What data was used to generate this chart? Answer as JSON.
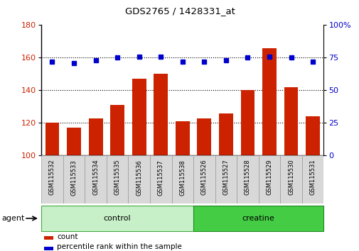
{
  "title": "GDS2765 / 1428331_at",
  "samples": [
    "GSM115532",
    "GSM115533",
    "GSM115534",
    "GSM115535",
    "GSM115536",
    "GSM115537",
    "GSM115538",
    "GSM115526",
    "GSM115527",
    "GSM115528",
    "GSM115529",
    "GSM115530",
    "GSM115531"
  ],
  "counts": [
    120,
    117,
    123,
    131,
    147,
    150,
    121,
    123,
    126,
    140,
    166,
    142,
    124
  ],
  "percentiles": [
    72,
    71,
    73,
    75,
    76,
    76,
    72,
    72,
    73,
    75,
    76,
    75,
    72
  ],
  "groups": [
    {
      "label": "control",
      "start": 0,
      "end": 7,
      "color": "#c8f0c8",
      "edgecolor": "#44aa44"
    },
    {
      "label": "creatine",
      "start": 7,
      "end": 13,
      "color": "#44cc44",
      "edgecolor": "#228822"
    }
  ],
  "agent_label": "agent",
  "bar_color": "#cc2200",
  "dot_color": "#0000cc",
  "left_ylim": [
    100,
    180
  ],
  "left_yticks": [
    100,
    120,
    140,
    160,
    180
  ],
  "right_ylim": [
    0,
    100
  ],
  "right_yticks": [
    0,
    25,
    50,
    75,
    100
  ],
  "right_yticklabels": [
    "0",
    "25",
    "50",
    "75",
    "100%"
  ],
  "legend_count_label": "count",
  "legend_pct_label": "percentile rank within the sample",
  "tick_label_color_left": "#cc2200",
  "tick_label_color_right": "#0000cc",
  "bar_bottom": 100,
  "bar_width": 0.65,
  "gridlines_at": [
    120,
    140,
    160
  ],
  "n_control": 7,
  "n_creatine": 6
}
